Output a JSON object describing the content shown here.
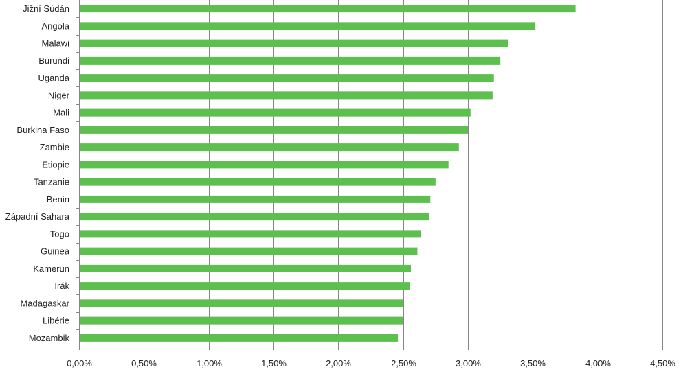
{
  "chart_data": {
    "type": "bar",
    "orientation": "horizontal",
    "title": "",
    "xlabel": "",
    "ylabel": "",
    "categories": [
      "Jižní Súdán",
      "Angola",
      "Malawi",
      "Burundi",
      "Uganda",
      "Niger",
      "Mali",
      "Burkina Faso",
      "Zambie",
      "Etiopie",
      "Tanzanie",
      "Benin",
      "Západní Sahara",
      "Togo",
      "Guinea",
      "Kamerun",
      "Irák",
      "Madagaskar",
      "Libérie",
      "Mozambik"
    ],
    "values": [
      3.83,
      3.52,
      3.31,
      3.25,
      3.2,
      3.19,
      3.02,
      3.0,
      2.93,
      2.85,
      2.75,
      2.71,
      2.7,
      2.64,
      2.61,
      2.56,
      2.55,
      2.5,
      2.5,
      2.46
    ],
    "xlim": [
      0,
      4.5
    ],
    "xticks": [
      "0,00%",
      "0,50%",
      "1,00%",
      "1,50%",
      "2,00%",
      "2,50%",
      "3,00%",
      "3,50%",
      "4,00%",
      "4,50%"
    ],
    "grid": "vertical",
    "legend": "none",
    "colors": {
      "bar": "#5cbf4e",
      "grid": "#868686",
      "axis": "#868686"
    }
  }
}
